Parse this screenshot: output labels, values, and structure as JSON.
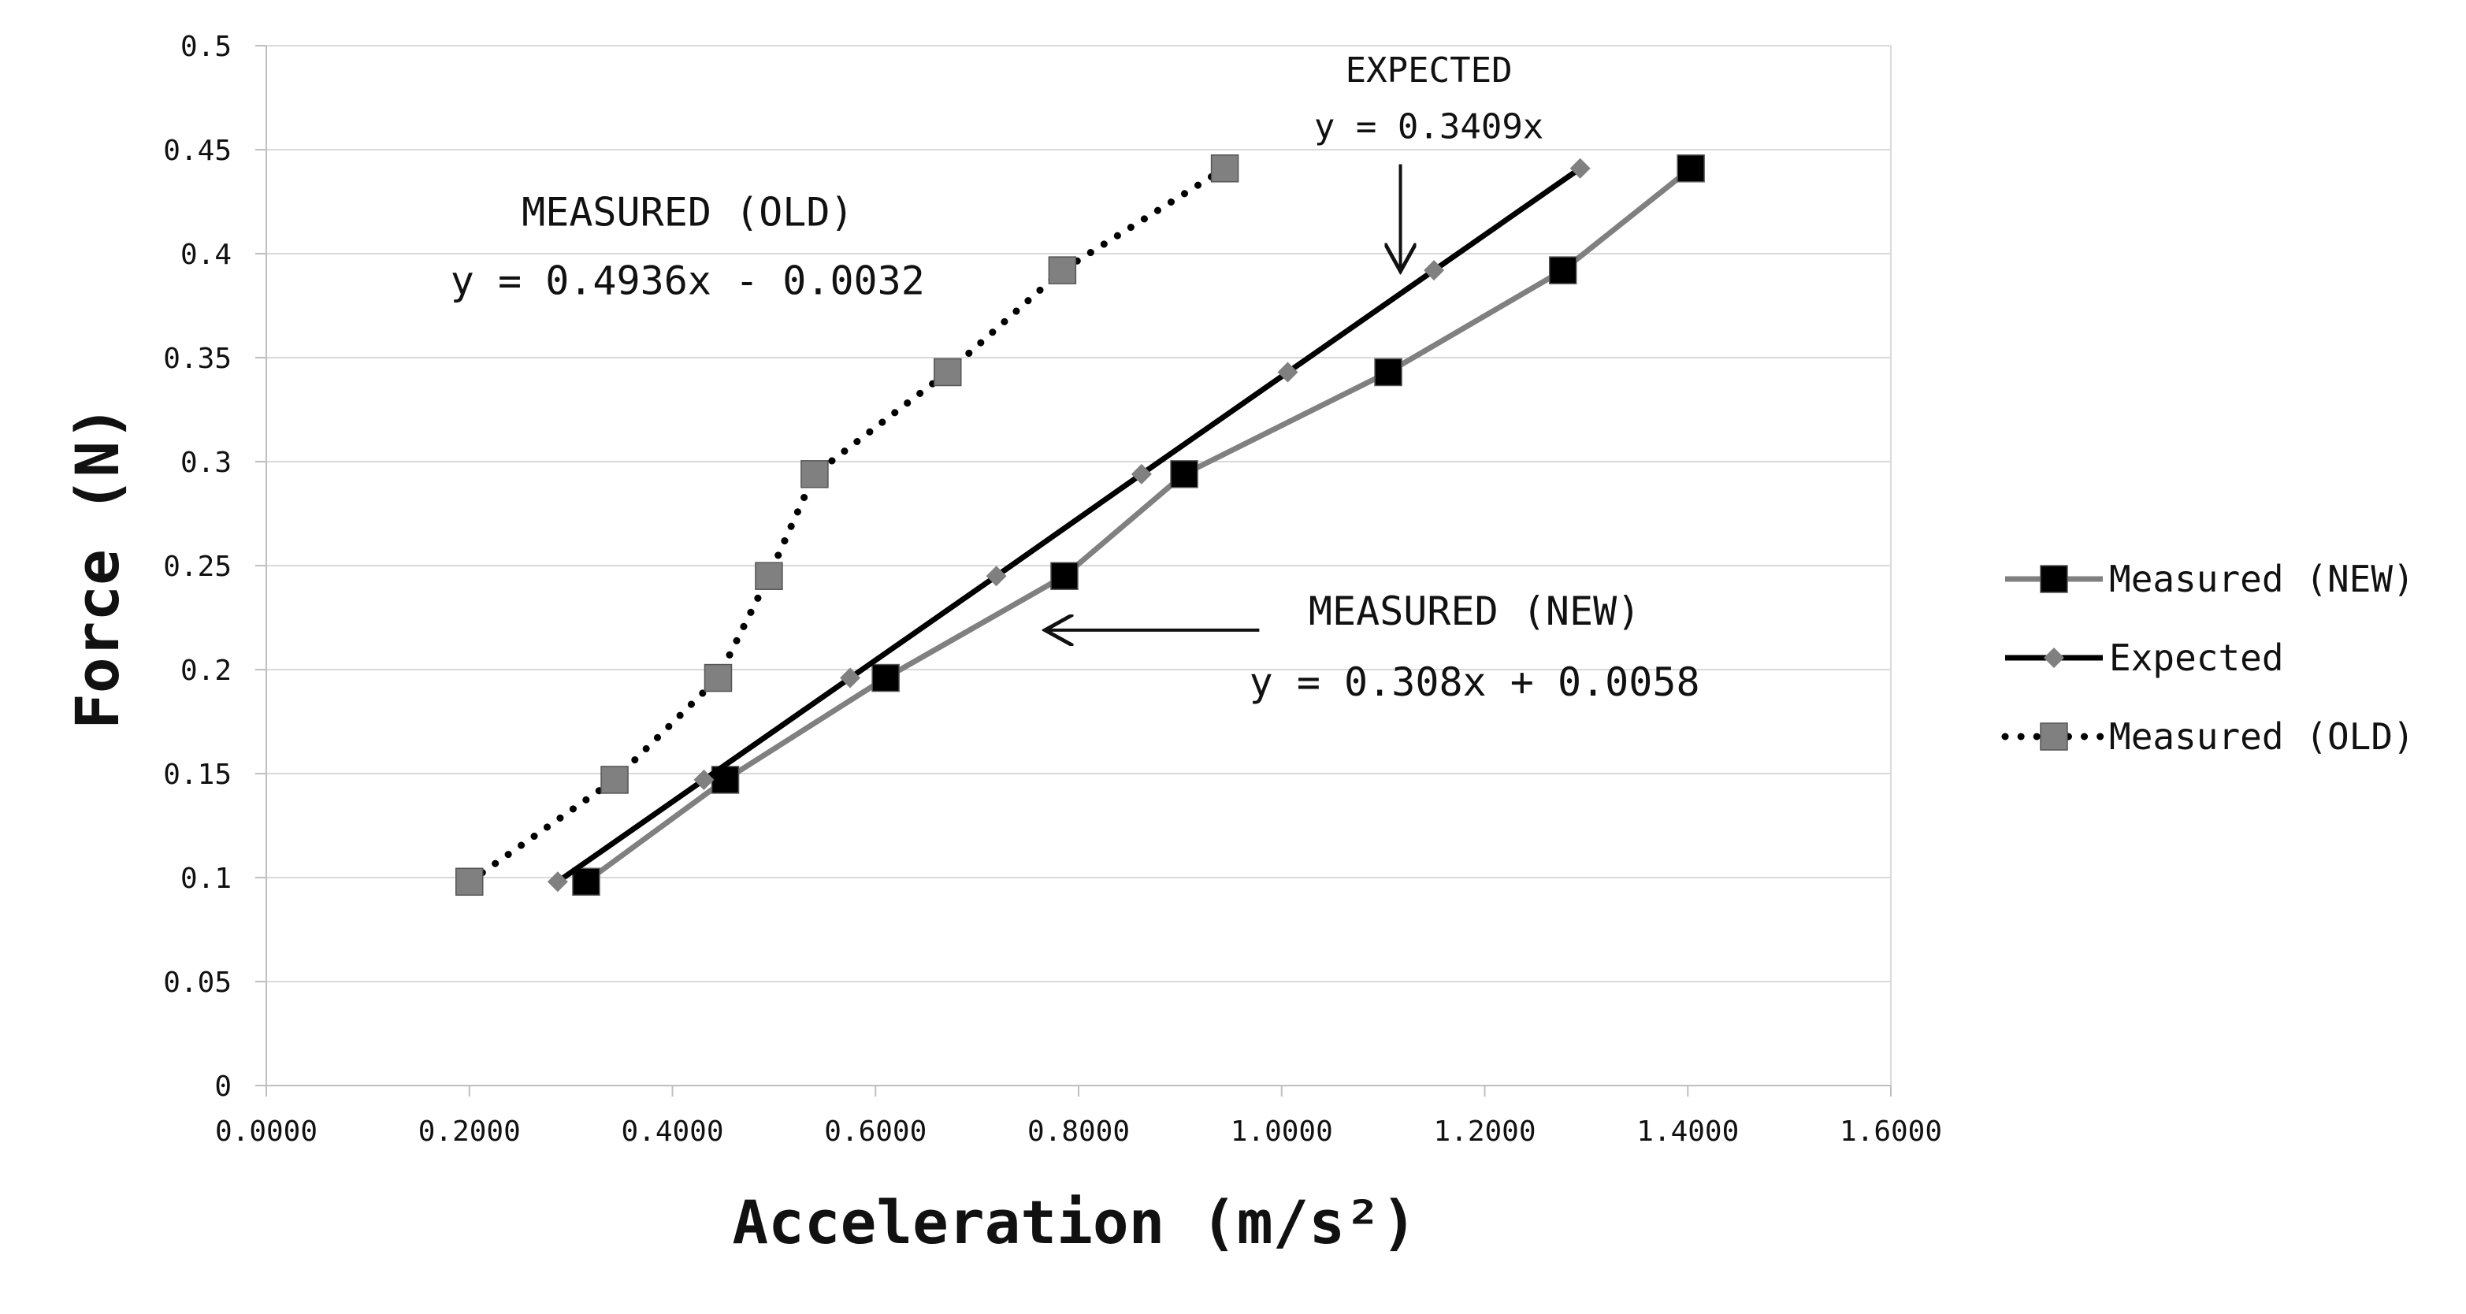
{
  "chart_data": {
    "type": "line",
    "title": "",
    "xlabel": "Acceleration (m/s²)",
    "ylabel": "Force (N)",
    "xlim": [
      0,
      1.6
    ],
    "ylim": [
      0,
      0.5
    ],
    "grid": "horizontal",
    "legend_position": "right",
    "x_ticks": [
      "0.0000",
      "0.2000",
      "0.4000",
      "0.6000",
      "0.8000",
      "1.0000",
      "1.2000",
      "1.4000",
      "1.6000"
    ],
    "y_ticks": [
      "0",
      "0.05",
      "0.1",
      "0.15",
      "0.2",
      "0.25",
      "0.3",
      "0.35",
      "0.4",
      "0.45",
      "0.5"
    ],
    "x_tick_values": [
      0,
      0.2,
      0.4,
      0.6,
      0.8,
      1.0,
      1.2,
      1.4,
      1.6
    ],
    "y_tick_values": [
      0,
      0.05,
      0.1,
      0.15,
      0.2,
      0.25,
      0.3,
      0.35,
      0.4,
      0.45,
      0.5
    ],
    "series": [
      {
        "name": "Measured (NEW)",
        "color": "#808080",
        "line_style": "solid",
        "marker": "square",
        "marker_color": "#000000",
        "points": [
          {
            "x": 0.315,
            "y": 0.098
          },
          {
            "x": 0.452,
            "y": 0.147
          },
          {
            "x": 0.61,
            "y": 0.196
          },
          {
            "x": 0.786,
            "y": 0.245
          },
          {
            "x": 0.904,
            "y": 0.294
          },
          {
            "x": 1.105,
            "y": 0.343
          },
          {
            "x": 1.277,
            "y": 0.392
          },
          {
            "x": 1.403,
            "y": 0.441
          }
        ]
      },
      {
        "name": "Expected",
        "color": "#000000",
        "line_style": "solid",
        "marker": "diamond",
        "marker_color": "#808080",
        "points": [
          {
            "x": 0.287,
            "y": 0.098
          },
          {
            "x": 0.431,
            "y": 0.147
          },
          {
            "x": 0.575,
            "y": 0.196
          },
          {
            "x": 0.719,
            "y": 0.245
          },
          {
            "x": 0.862,
            "y": 0.294
          },
          {
            "x": 1.006,
            "y": 0.343
          },
          {
            "x": 1.15,
            "y": 0.392
          },
          {
            "x": 1.294,
            "y": 0.441
          }
        ]
      },
      {
        "name": "Measured (OLD)",
        "color": "#000000",
        "line_style": "dotted",
        "marker": "square",
        "marker_color": "#808080",
        "points": [
          {
            "x": 0.2,
            "y": 0.098
          },
          {
            "x": 0.343,
            "y": 0.147
          },
          {
            "x": 0.445,
            "y": 0.196
          },
          {
            "x": 0.495,
            "y": 0.245
          },
          {
            "x": 0.54,
            "y": 0.294
          },
          {
            "x": 0.671,
            "y": 0.343
          },
          {
            "x": 0.784,
            "y": 0.392
          },
          {
            "x": 0.944,
            "y": 0.441
          }
        ]
      }
    ],
    "annotations": [
      {
        "id": "expected-title",
        "text": "EXPECTED",
        "x": 1.145,
        "y": 0.4825,
        "size": "small"
      },
      {
        "id": "expected-eq",
        "text": "y = 0.3409x",
        "x": 1.145,
        "y": 0.4555,
        "size": "small"
      },
      {
        "id": "old-title",
        "text": "MEASURED (OLD)",
        "x": 0.415,
        "y": 0.4135,
        "size": "large"
      },
      {
        "id": "old-eq",
        "text": "y = 0.4936x - 0.0032",
        "x": 0.415,
        "y": 0.3805,
        "size": "large"
      },
      {
        "id": "new-title",
        "text": "MEASURED (NEW)",
        "x": 1.19,
        "y": 0.2215,
        "size": "large"
      },
      {
        "id": "new-eq",
        "text": "y = 0.308x + 0.0058",
        "x": 1.19,
        "y": 0.1875,
        "size": "large"
      }
    ],
    "arrows": [
      {
        "id": "expected-arrow",
        "from": [
          1.117,
          0.443
        ],
        "to": [
          1.117,
          0.393
        ]
      },
      {
        "id": "new-arrow",
        "from": [
          0.978,
          0.219
        ],
        "to": [
          0.77,
          0.219
        ]
      }
    ]
  }
}
